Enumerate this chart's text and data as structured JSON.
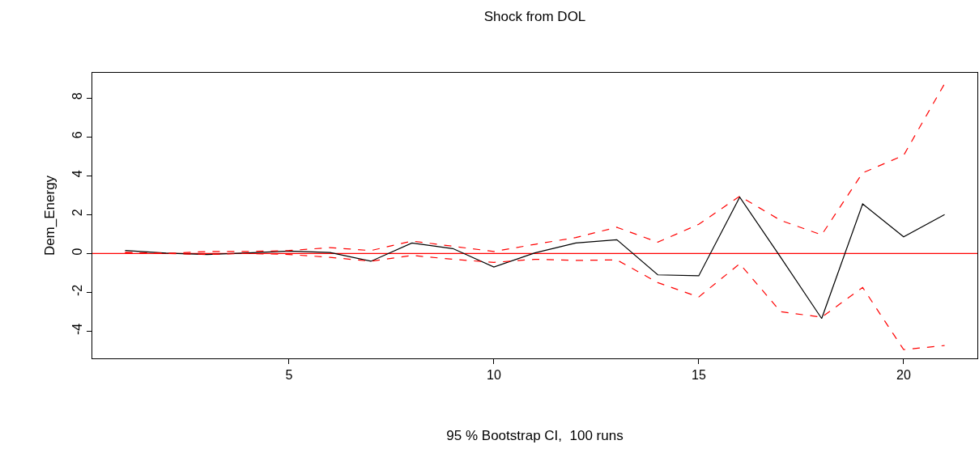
{
  "chart_data": {
    "type": "line",
    "title": "Shock from DOL",
    "xlabel": "95 % Bootstrap CI,  100 runs",
    "ylabel": "Dem_Energy",
    "x": [
      1,
      2,
      3,
      4,
      5,
      6,
      7,
      8,
      9,
      10,
      11,
      12,
      13,
      14,
      15,
      16,
      17,
      18,
      19,
      20,
      21
    ],
    "series": [
      {
        "color": "#000000",
        "line_style": "solid",
        "values": [
          0.15,
          0.02,
          -0.05,
          0.03,
          0.12,
          0.05,
          -0.4,
          0.54,
          0.25,
          -0.7,
          0.03,
          0.54,
          0.71,
          -1.1,
          -1.15,
          2.9,
          -0.2,
          -3.35,
          2.55,
          0.86,
          2.0
        ]
      },
      {
        "color": "#ff0000",
        "line_style": "dashed",
        "values": [
          0.05,
          0.0,
          0.1,
          0.1,
          0.15,
          0.3,
          0.15,
          0.64,
          0.37,
          0.1,
          0.47,
          0.82,
          1.35,
          0.58,
          1.5,
          2.95,
          1.7,
          0.96,
          4.15,
          5.05,
          8.74
        ]
      },
      {
        "color": "#ff0000",
        "line_style": "dashed",
        "values": [
          0.05,
          0.0,
          -0.05,
          0.0,
          -0.05,
          -0.2,
          -0.4,
          -0.1,
          -0.3,
          -0.46,
          -0.3,
          -0.36,
          -0.33,
          -1.5,
          -2.24,
          -0.53,
          -3.0,
          -3.28,
          -1.75,
          -4.95,
          -4.74
        ]
      }
    ],
    "ref_lines": [
      {
        "axis": "y",
        "value": 0,
        "color": "#ff0000",
        "line_style": "solid"
      }
    ],
    "xlim": [
      0.2,
      21.8
    ],
    "ylim": [
      -5.4,
      9.3
    ],
    "xticks": [
      5,
      10,
      15,
      20
    ],
    "yticks": [
      -4,
      -2,
      0,
      2,
      4,
      6,
      8
    ],
    "grid": false,
    "marker": "none"
  }
}
